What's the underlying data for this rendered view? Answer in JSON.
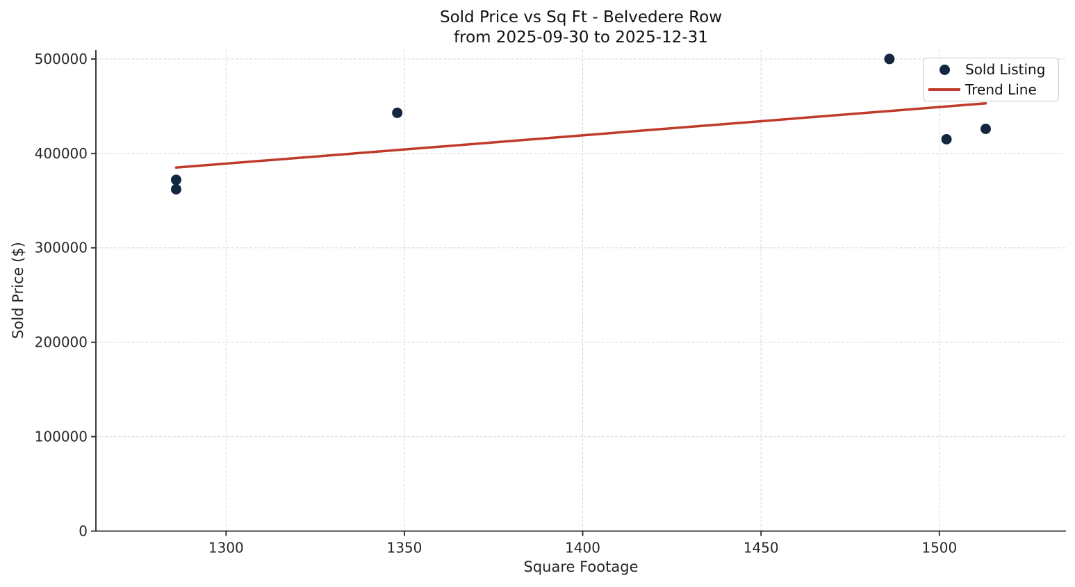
{
  "page": {
    "background": "#ffffff"
  },
  "chart_data": {
    "type": "scatter",
    "title": "Sold Price vs Sq Ft - Belvedere Row",
    "subtitle": "from 2025-09-30 to 2025-12-31",
    "xlabel": "Square Footage",
    "ylabel": "Sold Price ($)",
    "xlim": [
      1263.5,
      1535.5
    ],
    "ylim": [
      0,
      509500
    ],
    "x_ticks": [
      1300,
      1350,
      1400,
      1450,
      1500
    ],
    "y_ticks": [
      0,
      100000,
      200000,
      300000,
      400000,
      500000
    ],
    "grid": true,
    "legend_position": "upper right",
    "series": [
      {
        "name": "Sold Listing",
        "type": "scatter",
        "color": "#132740",
        "points": [
          {
            "sqft": 1286,
            "price": 372000
          },
          {
            "sqft": 1286,
            "price": 362000
          },
          {
            "sqft": 1348,
            "price": 443000
          },
          {
            "sqft": 1486,
            "price": 500000
          },
          {
            "sqft": 1502,
            "price": 415000
          },
          {
            "sqft": 1513,
            "price": 426000
          }
        ]
      },
      {
        "name": "Trend Line",
        "type": "line",
        "color": "#c03a2b",
        "points": [
          {
            "sqft": 1286,
            "price": 385000
          },
          {
            "sqft": 1513,
            "price": 453000
          }
        ]
      }
    ],
    "colors": {
      "point": "#132740",
      "trend": "#c03a2b",
      "spine": "#262626",
      "grid": "#d5d5d5"
    }
  }
}
